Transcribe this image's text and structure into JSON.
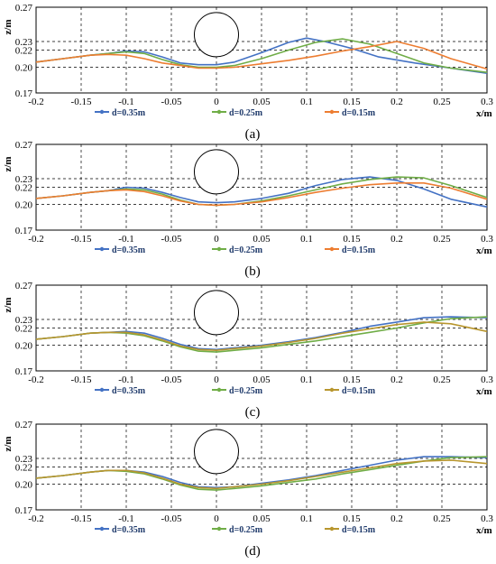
{
  "chart_data": [
    {
      "type": "line",
      "panel_label": "(a)",
      "xlabel": "x/m",
      "ylabel": "z/m",
      "xlim": [
        -0.2,
        0.3
      ],
      "ylim": [
        0.17,
        0.27
      ],
      "xticks": [
        "-0.2",
        "-0.15",
        "-0.1",
        "-0.05",
        "0",
        "0.05",
        "0.1",
        "0.15",
        "0.2",
        "0.25",
        "0.3"
      ],
      "yticks": [
        "0.17",
        "0.20",
        "0.22",
        "0.23",
        "0.27"
      ],
      "grid": true,
      "legend": "bottom",
      "cylinder": {
        "cx": 0.0,
        "cy": 0.238,
        "r": 0.0245
      },
      "series": [
        {
          "name": "d=0.35m",
          "color": "#4472c4",
          "x": [
            -0.2,
            -0.17,
            -0.14,
            -0.12,
            -0.1,
            -0.08,
            -0.06,
            -0.04,
            -0.02,
            0,
            0.02,
            0.05,
            0.08,
            0.1,
            0.12,
            0.15,
            0.18,
            0.22,
            0.26,
            0.3
          ],
          "y": [
            0.206,
            0.21,
            0.214,
            0.216,
            0.219,
            0.218,
            0.212,
            0.205,
            0.203,
            0.203,
            0.206,
            0.217,
            0.229,
            0.234,
            0.23,
            0.222,
            0.212,
            0.205,
            0.199,
            0.193
          ]
        },
        {
          "name": "d=0.25m",
          "color": "#70ad47",
          "x": [
            -0.2,
            -0.17,
            -0.14,
            -0.12,
            -0.1,
            -0.08,
            -0.06,
            -0.04,
            -0.02,
            0,
            0.02,
            0.05,
            0.08,
            0.11,
            0.14,
            0.17,
            0.2,
            0.23,
            0.26,
            0.3
          ],
          "y": [
            0.206,
            0.21,
            0.214,
            0.216,
            0.218,
            0.216,
            0.209,
            0.203,
            0.2,
            0.2,
            0.202,
            0.21,
            0.22,
            0.229,
            0.233,
            0.227,
            0.216,
            0.205,
            0.199,
            0.194
          ]
        },
        {
          "name": "d=0.15m",
          "color": "#ed7d31",
          "x": [
            -0.2,
            -0.17,
            -0.14,
            -0.12,
            -0.1,
            -0.08,
            -0.06,
            -0.04,
            -0.02,
            0,
            0.02,
            0.05,
            0.08,
            0.11,
            0.14,
            0.17,
            0.2,
            0.23,
            0.26,
            0.3
          ],
          "y": [
            0.206,
            0.21,
            0.214,
            0.215,
            0.214,
            0.21,
            0.205,
            0.202,
            0.199,
            0.199,
            0.2,
            0.204,
            0.208,
            0.213,
            0.219,
            0.224,
            0.23,
            0.222,
            0.21,
            0.198
          ]
        }
      ],
      "legend_entries": [
        "d=0.35m",
        "d=0.25m",
        "d=0.15m"
      ]
    },
    {
      "type": "line",
      "panel_label": "(b)",
      "xlabel": "x/m",
      "ylabel": "z/m",
      "xlim": [
        -0.2,
        0.3
      ],
      "ylim": [
        0.17,
        0.27
      ],
      "xticks": [
        "-0.2",
        "-0.15",
        "-0.1",
        "-0.05",
        "0",
        "0.05",
        "0.1",
        "0.15",
        "0.2",
        "0.25",
        "0.3"
      ],
      "yticks": [
        "0.17",
        "0.20",
        "0.22",
        "0.23",
        "0.27"
      ],
      "grid": true,
      "legend": "bottom",
      "cylinder": {
        "cx": 0.0,
        "cy": 0.238,
        "r": 0.0245
      },
      "series": [
        {
          "name": "d=0.35m",
          "color": "#4472c4",
          "x": [
            -0.2,
            -0.17,
            -0.14,
            -0.12,
            -0.1,
            -0.08,
            -0.06,
            -0.04,
            -0.02,
            0,
            0.02,
            0.05,
            0.08,
            0.11,
            0.14,
            0.17,
            0.2,
            0.23,
            0.26,
            0.3
          ],
          "y": [
            0.207,
            0.21,
            0.214,
            0.216,
            0.22,
            0.219,
            0.214,
            0.208,
            0.203,
            0.202,
            0.203,
            0.207,
            0.213,
            0.222,
            0.229,
            0.232,
            0.228,
            0.218,
            0.206,
            0.197
          ]
        },
        {
          "name": "d=0.25m",
          "color": "#70ad47",
          "x": [
            -0.2,
            -0.17,
            -0.14,
            -0.12,
            -0.1,
            -0.08,
            -0.06,
            -0.04,
            -0.02,
            0,
            0.02,
            0.05,
            0.08,
            0.11,
            0.14,
            0.17,
            0.2,
            0.23,
            0.26,
            0.3
          ],
          "y": [
            0.207,
            0.21,
            0.214,
            0.216,
            0.218,
            0.217,
            0.212,
            0.205,
            0.2,
            0.199,
            0.2,
            0.204,
            0.21,
            0.217,
            0.224,
            0.229,
            0.232,
            0.231,
            0.222,
            0.208
          ]
        },
        {
          "name": "d=0.15m",
          "color": "#ed7d31",
          "x": [
            -0.2,
            -0.17,
            -0.14,
            -0.12,
            -0.1,
            -0.08,
            -0.06,
            -0.04,
            -0.02,
            0,
            0.02,
            0.05,
            0.08,
            0.11,
            0.14,
            0.17,
            0.2,
            0.23,
            0.26,
            0.3
          ],
          "y": [
            0.207,
            0.21,
            0.214,
            0.216,
            0.217,
            0.215,
            0.21,
            0.204,
            0.2,
            0.199,
            0.2,
            0.203,
            0.208,
            0.214,
            0.219,
            0.223,
            0.225,
            0.225,
            0.219,
            0.206
          ]
        }
      ],
      "legend_entries": [
        "d=0.35m",
        "d=0.25m",
        "d=0.15m"
      ]
    },
    {
      "type": "line",
      "panel_label": "(c)",
      "xlabel": "x/m",
      "ylabel": "z/m",
      "xlim": [
        -0.2,
        0.3
      ],
      "ylim": [
        0.17,
        0.27
      ],
      "xticks": [
        "-0.2",
        "-0.15",
        "-0.1",
        "-0.05",
        "0",
        "0.05",
        "0.1",
        "0.15",
        "0.2",
        "0.25",
        "0.3"
      ],
      "yticks": [
        "0.17",
        "0.20",
        "0.22",
        "0.23",
        "0.27"
      ],
      "grid": true,
      "legend": "bottom",
      "cylinder": {
        "cx": 0.0,
        "cy": 0.238,
        "r": 0.0245
      },
      "series": [
        {
          "name": "d=0.35m",
          "color": "#4472c4",
          "x": [
            -0.2,
            -0.17,
            -0.14,
            -0.12,
            -0.1,
            -0.08,
            -0.06,
            -0.04,
            -0.02,
            0,
            0.02,
            0.05,
            0.08,
            0.11,
            0.14,
            0.17,
            0.2,
            0.23,
            0.26,
            0.3
          ],
          "y": [
            0.207,
            0.21,
            0.214,
            0.215,
            0.216,
            0.214,
            0.208,
            0.201,
            0.196,
            0.195,
            0.197,
            0.2,
            0.204,
            0.209,
            0.215,
            0.222,
            0.227,
            0.232,
            0.233,
            0.232
          ]
        },
        {
          "name": "d=0.25m",
          "color": "#70ad47",
          "x": [
            -0.2,
            -0.17,
            -0.14,
            -0.12,
            -0.1,
            -0.08,
            -0.06,
            -0.04,
            -0.02,
            0,
            0.02,
            0.05,
            0.08,
            0.11,
            0.14,
            0.17,
            0.2,
            0.23,
            0.26,
            0.3
          ],
          "y": [
            0.207,
            0.21,
            0.214,
            0.215,
            0.214,
            0.211,
            0.205,
            0.198,
            0.193,
            0.192,
            0.194,
            0.197,
            0.201,
            0.205,
            0.21,
            0.215,
            0.22,
            0.226,
            0.231,
            0.233
          ]
        },
        {
          "name": "d=0.15m",
          "color": "#b8962e",
          "x": [
            -0.2,
            -0.17,
            -0.14,
            -0.12,
            -0.1,
            -0.08,
            -0.06,
            -0.04,
            -0.02,
            0,
            0.02,
            0.05,
            0.08,
            0.11,
            0.14,
            0.17,
            0.2,
            0.23,
            0.26,
            0.3
          ],
          "y": [
            0.207,
            0.21,
            0.214,
            0.215,
            0.215,
            0.212,
            0.206,
            0.199,
            0.195,
            0.194,
            0.196,
            0.199,
            0.203,
            0.208,
            0.214,
            0.219,
            0.224,
            0.227,
            0.225,
            0.216
          ]
        }
      ],
      "legend_entries": [
        "d=0.35m",
        "d=0.25m",
        "d=0.15m"
      ]
    },
    {
      "type": "line",
      "panel_label": "(d)",
      "xlabel": "x/m",
      "ylabel": "z/m",
      "xlim": [
        -0.2,
        0.3
      ],
      "ylim": [
        0.17,
        0.27
      ],
      "xticks": [
        "-0.2",
        "-0.15",
        "-0.1",
        "-0.05",
        "0",
        "0.05",
        "0.1",
        "0.15",
        "0.2",
        "0.25",
        "0.3"
      ],
      "yticks": [
        "0.17",
        "0.20",
        "0.22",
        "0.23",
        "0.27"
      ],
      "grid": true,
      "legend": "bottom",
      "cylinder": {
        "cx": 0.0,
        "cy": 0.238,
        "r": 0.0245
      },
      "series": [
        {
          "name": "d=0.35m",
          "color": "#4472c4",
          "x": [
            -0.2,
            -0.17,
            -0.14,
            -0.12,
            -0.1,
            -0.08,
            -0.06,
            -0.04,
            -0.02,
            0,
            0.02,
            0.05,
            0.08,
            0.11,
            0.14,
            0.17,
            0.2,
            0.23,
            0.26,
            0.3
          ],
          "y": [
            0.207,
            0.21,
            0.214,
            0.216,
            0.216,
            0.214,
            0.209,
            0.202,
            0.197,
            0.196,
            0.197,
            0.201,
            0.205,
            0.21,
            0.216,
            0.222,
            0.228,
            0.232,
            0.232,
            0.231
          ]
        },
        {
          "name": "d=0.25m",
          "color": "#70ad47",
          "x": [
            -0.2,
            -0.17,
            -0.14,
            -0.12,
            -0.1,
            -0.08,
            -0.06,
            -0.04,
            -0.02,
            0,
            0.02,
            0.05,
            0.08,
            0.11,
            0.14,
            0.17,
            0.2,
            0.23,
            0.26,
            0.3
          ],
          "y": [
            0.207,
            0.21,
            0.214,
            0.216,
            0.215,
            0.212,
            0.206,
            0.199,
            0.194,
            0.193,
            0.195,
            0.198,
            0.202,
            0.206,
            0.212,
            0.217,
            0.222,
            0.227,
            0.231,
            0.232
          ]
        },
        {
          "name": "d=0.15m",
          "color": "#b8962e",
          "x": [
            -0.2,
            -0.17,
            -0.14,
            -0.12,
            -0.1,
            -0.08,
            -0.06,
            -0.04,
            -0.02,
            0,
            0.02,
            0.05,
            0.08,
            0.11,
            0.14,
            0.17,
            0.2,
            0.23,
            0.26,
            0.3
          ],
          "y": [
            0.207,
            0.21,
            0.214,
            0.216,
            0.216,
            0.213,
            0.207,
            0.2,
            0.196,
            0.195,
            0.197,
            0.2,
            0.204,
            0.209,
            0.214,
            0.219,
            0.224,
            0.227,
            0.228,
            0.224
          ]
        }
      ],
      "legend_entries": [
        "d=0.35m",
        "d=0.25m",
        "d=0.15m"
      ]
    }
  ]
}
